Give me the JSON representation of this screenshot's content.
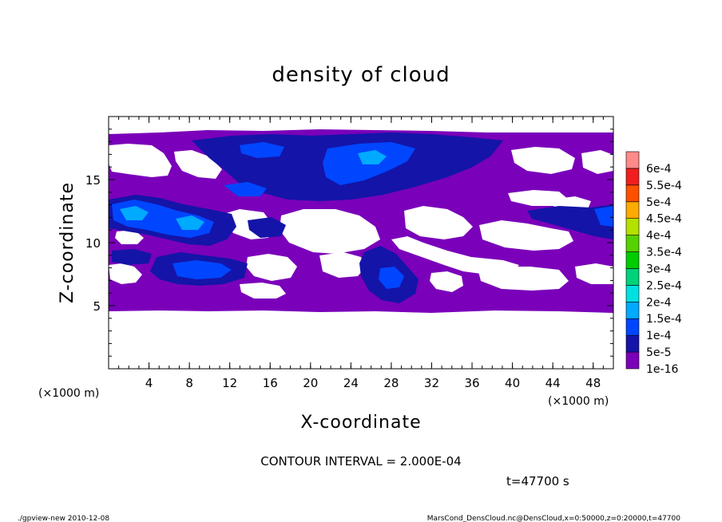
{
  "chart_data": {
    "type": "heatmap",
    "title": "density of cloud",
    "xlabel": "X-coordinate",
    "ylabel": "Z-coordinate",
    "x_unit": "(×1000 m)",
    "y_unit": "(×1000 m)",
    "xlim": [
      0,
      50
    ],
    "ylim": [
      0,
      20
    ],
    "x_ticks": [
      4,
      8,
      12,
      16,
      20,
      24,
      28,
      32,
      36,
      40,
      44,
      48
    ],
    "y_ticks": [
      5,
      10,
      15
    ],
    "colorbar": {
      "levels": [
        "1e-16",
        "5e-5",
        "1e-4",
        "1.5e-4",
        "2e-4",
        "2.5e-4",
        "3e-4",
        "3.5e-4",
        "4e-4",
        "4.5e-4",
        "5e-4",
        "5.5e-4",
        "6e-4"
      ],
      "colors": [
        "#7a00ba",
        "#1414a8",
        "#0046ff",
        "#00aaff",
        "#00e0e0",
        "#00d27a",
        "#00cc00",
        "#55d200",
        "#b4e100",
        "#ffaa00",
        "#ff5000",
        "#f01e1e",
        "#ff8a8a"
      ]
    },
    "cloud_layers": [
      {
        "z_range": [
          4.5,
          18.5
        ],
        "level": "1e-16",
        "note": "cloud layer spans x=0-50"
      },
      {
        "region": "x 8-36, z 14-18.5",
        "level": "5e-5"
      },
      {
        "region": "x 0-10, z 10-13",
        "level": "1e-4"
      },
      {
        "region": "x 4-14, z 7-9",
        "level": "5e-5"
      },
      {
        "region": "x 26-32, z 5.5-8",
        "level": "5e-5"
      }
    ],
    "contour_interval_label": "CONTOUR INTERVAL = 2.000E-04",
    "time_label": "t=47700 s"
  },
  "footer": {
    "left": "./gpview-new   2010-12-08",
    "right": "MarsCond_DensCloud.nc@DensCloud,x=0:50000,z=0:20000,t=47700"
  }
}
